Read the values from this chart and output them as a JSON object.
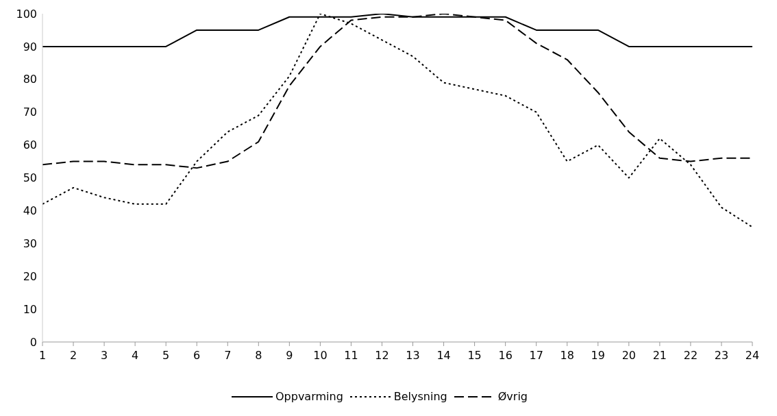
{
  "chart_data": {
    "type": "line",
    "x": [
      1,
      2,
      3,
      4,
      5,
      6,
      7,
      8,
      9,
      10,
      11,
      12,
      13,
      14,
      15,
      16,
      17,
      18,
      19,
      20,
      21,
      22,
      23,
      24
    ],
    "xlim": [
      1,
      24
    ],
    "xticks": [
      1,
      2,
      3,
      4,
      5,
      6,
      7,
      8,
      9,
      10,
      11,
      12,
      13,
      14,
      15,
      16,
      17,
      18,
      19,
      20,
      21,
      22,
      23,
      24
    ],
    "ylim": [
      0,
      100
    ],
    "yticks": [
      0,
      10,
      20,
      30,
      40,
      50,
      60,
      70,
      80,
      90,
      100
    ],
    "series": [
      {
        "name": "Oppvarming",
        "color": "#000000",
        "line_style": "solid",
        "values": [
          90,
          90,
          90,
          90,
          90,
          95,
          95,
          95,
          99,
          99,
          99,
          100,
          99,
          99,
          99,
          99,
          95,
          95,
          95,
          90,
          90,
          90,
          90,
          90
        ]
      },
      {
        "name": "Belysning",
        "color": "#000000",
        "line_style": "dotted",
        "values": [
          42,
          47,
          44,
          42,
          42,
          55,
          64,
          69,
          81,
          100,
          97,
          92,
          87,
          79,
          77,
          75,
          70,
          55,
          60,
          50,
          62,
          54,
          41,
          35
        ]
      },
      {
        "name": "Øvrig",
        "color": "#000000",
        "line_style": "dashed",
        "values": [
          54,
          55,
          55,
          54,
          54,
          53,
          55,
          61,
          78,
          90,
          98,
          99,
          99,
          100,
          99,
          98,
          91,
          86,
          76,
          64,
          56,
          55,
          56,
          56
        ]
      }
    ],
    "legend": "bottom",
    "marker": "none"
  }
}
